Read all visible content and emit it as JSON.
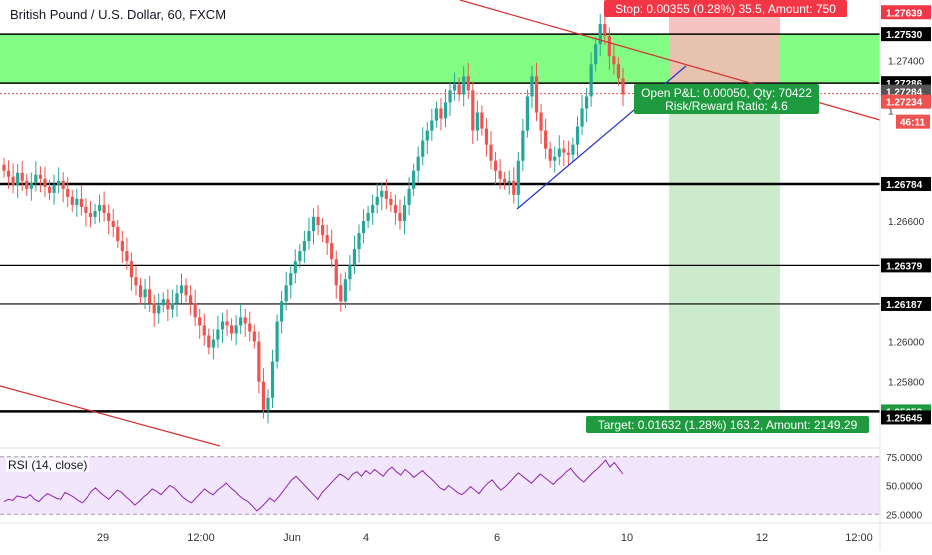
{
  "header": {
    "title": "British Pound / U.S. Dollar, 60, FXCM"
  },
  "position": {
    "stop_label": "Stop: 0.00355 (0.28%) 35.5, Amount: 750",
    "pnl_label": "Open P&L: 0.00050, Qty: 70422",
    "rr_label": "Risk/Reward Ratio: 4.6",
    "target_label": "Target: 0.01632 (1.28%) 163.2, Amount: 2149.29"
  },
  "price_axis": {
    "ticks": [
      "1.27400",
      "1.26600",
      "1.26000",
      "1.25800"
    ],
    "badges": {
      "stop": "1.27639",
      "zone_top": "1.27530",
      "zone_bottom": "1.27286",
      "current": "1.27284",
      "last": "1.27234",
      "countdown": "46:11",
      "level1": "1.26784",
      "level2": "1.26379",
      "level3": "1.26187",
      "target": "1.25652",
      "low": "1.25645"
    },
    "partial_tick": "1"
  },
  "rsi": {
    "label": "RSI (14, close)",
    "ticks": [
      "75.0000",
      "50.0000",
      "25.0000"
    ],
    "values": [
      36,
      38,
      37,
      41,
      40,
      39,
      42,
      38,
      36,
      40,
      43,
      41,
      39,
      38,
      44,
      42,
      40,
      37,
      35,
      39,
      45,
      48,
      44,
      41,
      38,
      42,
      46,
      44,
      40,
      37,
      33,
      36,
      40,
      43,
      47,
      45,
      42,
      46,
      50,
      48,
      44,
      40,
      37,
      35,
      39,
      43,
      47,
      44,
      42,
      46,
      49,
      52,
      48,
      45,
      41,
      38,
      36,
      32,
      28,
      31,
      35,
      39,
      36,
      40,
      45,
      50,
      55,
      58,
      54,
      50,
      46,
      42,
      38,
      44,
      48,
      52,
      56,
      60,
      58,
      55,
      60,
      62,
      58,
      63,
      60,
      64,
      61,
      58,
      63,
      66,
      62,
      59,
      64,
      61,
      57,
      60,
      63,
      59,
      56,
      52,
      48,
      46,
      50,
      47,
      44,
      42,
      45,
      49,
      46,
      43,
      48,
      52,
      55,
      50,
      46,
      49,
      53,
      57,
      61,
      58,
      55,
      52,
      56,
      60,
      57,
      54,
      51,
      55,
      58,
      62,
      65,
      60,
      56,
      53,
      57,
      61,
      64,
      68,
      72,
      66,
      70,
      65,
      60
    ],
    "range": [
      20,
      80
    ]
  },
  "time_axis": {
    "labels": [
      "29",
      "12:00",
      "Jun",
      "4",
      "6",
      "10",
      "12",
      "12:00"
    ]
  },
  "chart_data": {
    "type": "candlestick",
    "title": "British Pound / U.S. Dollar, 60, FXCM",
    "y_range": [
      1.2546,
      1.277
    ],
    "close_series": [
      1.2685,
      1.2682,
      1.2678,
      1.2684,
      1.268,
      1.2676,
      1.2679,
      1.2683,
      1.2681,
      1.2677,
      1.2674,
      1.2678,
      1.268,
      1.2676,
      1.2672,
      1.2668,
      1.2671,
      1.2667,
      1.2664,
      1.2662,
      1.2665,
      1.2668,
      1.2664,
      1.266,
      1.2657,
      1.265,
      1.2645,
      1.264,
      1.2632,
      1.2628,
      1.2622,
      1.2626,
      1.2619,
      1.2614,
      1.2618,
      1.2621,
      1.2616,
      1.2619,
      1.2624,
      1.2628,
      1.2623,
      1.2619,
      1.2612,
      1.2608,
      1.2603,
      1.2597,
      1.2601,
      1.2606,
      1.261,
      1.2608,
      1.2604,
      1.2608,
      1.2612,
      1.2609,
      1.2605,
      1.26,
      1.258,
      1.2566,
      1.2572,
      1.259,
      1.261,
      1.262,
      1.2628,
      1.2634,
      1.264,
      1.2645,
      1.265,
      1.2655,
      1.2662,
      1.2658,
      1.2653,
      1.2649,
      1.2641,
      1.2628,
      1.262,
      1.2631,
      1.2638,
      1.2646,
      1.2654,
      1.266,
      1.2664,
      1.2668,
      1.2672,
      1.2675,
      1.2671,
      1.2668,
      1.2664,
      1.266,
      1.2668,
      1.2676,
      1.2685,
      1.2692,
      1.27,
      1.2705,
      1.271,
      1.2716,
      1.2711,
      1.2719,
      1.2725,
      1.2728,
      1.2723,
      1.2732,
      1.2725,
      1.2705,
      1.2714,
      1.2706,
      1.2698,
      1.269,
      1.2685,
      1.2681,
      1.2679,
      1.268,
      1.2673,
      1.269,
      1.2705,
      1.2722,
      1.2732,
      1.2714,
      1.2705,
      1.2696,
      1.269,
      1.2692,
      1.2696,
      1.2694,
      1.2693,
      1.2698,
      1.2707,
      1.2716,
      1.2722,
      1.2738,
      1.2748,
      1.2758,
      1.2752,
      1.2742,
      1.2738,
      1.2731,
      1.2723
    ]
  }
}
